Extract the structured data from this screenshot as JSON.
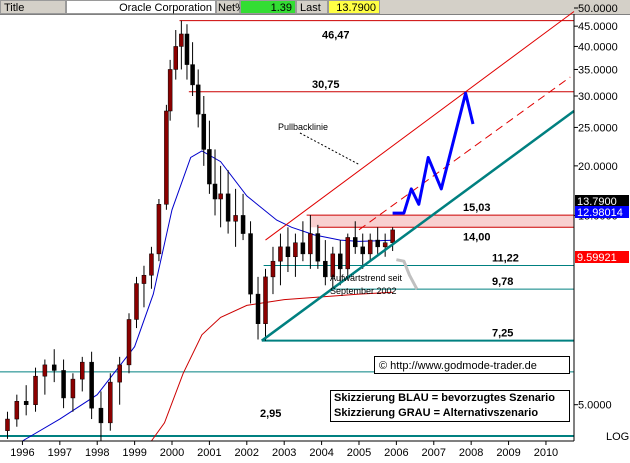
{
  "header": {
    "title_label": "Title",
    "symbol": "Oracle Corporation",
    "net_label": "Net%",
    "net_value": "1.39",
    "last_label": "Last",
    "last_value": "13.7900"
  },
  "colors": {
    "background": "#ffffff",
    "candles": "#8b0000",
    "ma_short": "#0000cc",
    "ma_long": "#cc0000",
    "trend_lines": "#008080",
    "channel_lines": "#e00000",
    "scenario_blue": "#0000ff",
    "scenario_gray": "#c0c0c0",
    "net_bg": "#33dd33",
    "last_bg": "#ffff44"
  },
  "chart_data": {
    "type": "candlestick",
    "yscale": "log",
    "ylim": [
      4.05,
      50
    ],
    "xlim": [
      1995.4,
      2010.75
    ],
    "y_ticks": [
      "50.0000",
      "45.0000",
      "40.0000",
      "35.0000",
      "30.0000",
      "25.0000",
      "20.0000",
      "15.0000",
      "5.0000"
    ],
    "y_tick_values": [
      50,
      45,
      40,
      35,
      30,
      25,
      20,
      15,
      5
    ],
    "x_ticks": [
      "1996",
      "1997",
      "1998",
      "1999",
      "2000",
      "2001",
      "2002",
      "2003",
      "2004",
      "2005",
      "2006",
      "2007",
      "2008",
      "2009",
      "2010"
    ],
    "x_tick_values": [
      1996,
      1997,
      1998,
      1999,
      2000,
      2001,
      2002,
      2003,
      2004,
      2005,
      2006,
      2007,
      2008,
      2009,
      2010
    ],
    "scale_label": "LOG",
    "price_markers": [
      {
        "label": "13.7900",
        "value": 13.79,
        "color": "#000000"
      },
      {
        "label": "12.98014",
        "value": 12.98,
        "color": "#0000ff"
      },
      {
        "label": "9.59921",
        "value": 9.6,
        "color": "#ff0000"
      }
    ],
    "levels": [
      {
        "label": "46,47",
        "value": 46.47,
        "color": "#cc0000"
      },
      {
        "label": "30,75",
        "value": 30.75,
        "color": "#cc0000"
      },
      {
        "label": "15,03",
        "value": 15.03,
        "color": "#cc0000"
      },
      {
        "label": "14,00",
        "value": 14.0,
        "color": "#cc0000"
      },
      {
        "label": "11,22",
        "value": 11.22,
        "color": "#008080"
      },
      {
        "label": "9,78",
        "value": 9.78,
        "color": "#008080"
      },
      {
        "label": "7,25",
        "value": 7.25,
        "color": "#008080"
      },
      {
        "label": "2,95",
        "value": 2.95,
        "color": "#008080"
      }
    ],
    "annotations": [
      "Pullbacklinie",
      "Aufwärtstrend seit",
      "September 2002"
    ],
    "candles_quarterly": [
      {
        "t": 1995.6,
        "o": 4.3,
        "h": 4.8,
        "l": 4.1,
        "c": 4.6
      },
      {
        "t": 1995.85,
        "o": 4.6,
        "h": 5.3,
        "l": 4.4,
        "c": 5.1
      },
      {
        "t": 1996.1,
        "o": 5.1,
        "h": 5.6,
        "l": 4.7,
        "c": 5.0
      },
      {
        "t": 1996.35,
        "o": 5.0,
        "h": 6.2,
        "l": 4.8,
        "c": 5.9
      },
      {
        "t": 1996.6,
        "o": 5.9,
        "h": 6.5,
        "l": 5.3,
        "c": 6.3
      },
      {
        "t": 1996.85,
        "o": 6.3,
        "h": 6.9,
        "l": 5.7,
        "c": 6.1
      },
      {
        "t": 1997.1,
        "o": 6.1,
        "h": 6.5,
        "l": 4.9,
        "c": 5.2
      },
      {
        "t": 1997.35,
        "o": 5.2,
        "h": 6.0,
        "l": 4.8,
        "c": 5.8
      },
      {
        "t": 1997.6,
        "o": 5.8,
        "h": 6.6,
        "l": 5.4,
        "c": 6.4
      },
      {
        "t": 1997.85,
        "o": 6.4,
        "h": 6.8,
        "l": 4.6,
        "c": 4.9
      },
      {
        "t": 1998.1,
        "o": 4.9,
        "h": 5.4,
        "l": 4.0,
        "c": 4.5
      },
      {
        "t": 1998.35,
        "o": 4.5,
        "h": 6.0,
        "l": 4.3,
        "c": 5.7
      },
      {
        "t": 1998.6,
        "o": 5.7,
        "h": 6.6,
        "l": 5.0,
        "c": 6.3
      },
      {
        "t": 1998.85,
        "o": 6.3,
        "h": 8.5,
        "l": 6.0,
        "c": 8.2
      },
      {
        "t": 1999.05,
        "o": 8.2,
        "h": 10.5,
        "l": 7.8,
        "c": 10.1
      },
      {
        "t": 1999.25,
        "o": 10.1,
        "h": 11.2,
        "l": 8.8,
        "c": 10.6
      },
      {
        "t": 1999.45,
        "o": 10.6,
        "h": 12.5,
        "l": 9.8,
        "c": 12.0
      },
      {
        "t": 1999.65,
        "o": 12.0,
        "h": 16.5,
        "l": 11.5,
        "c": 16.0
      },
      {
        "t": 1999.85,
        "o": 16.0,
        "h": 28.5,
        "l": 15.5,
        "c": 27.5
      },
      {
        "t": 1999.95,
        "o": 27.5,
        "h": 37.0,
        "l": 26.0,
        "c": 35.0
      },
      {
        "t": 2000.1,
        "o": 35.0,
        "h": 44.0,
        "l": 33.0,
        "c": 40.0
      },
      {
        "t": 2000.25,
        "o": 40.0,
        "h": 46.47,
        "l": 35.0,
        "c": 43.0
      },
      {
        "t": 2000.4,
        "o": 43.0,
        "h": 45.5,
        "l": 33.0,
        "c": 36.0
      },
      {
        "t": 2000.55,
        "o": 36.0,
        "h": 41.0,
        "l": 30.0,
        "c": 32.0
      },
      {
        "t": 2000.7,
        "o": 32.0,
        "h": 35.0,
        "l": 25.0,
        "c": 27.0
      },
      {
        "t": 2000.85,
        "o": 27.0,
        "h": 30.0,
        "l": 20.0,
        "c": 22.0
      },
      {
        "t": 2001.0,
        "o": 22.0,
        "h": 26.0,
        "l": 17.0,
        "c": 18.0
      },
      {
        "t": 2001.15,
        "o": 18.0,
        "h": 22.0,
        "l": 15.0,
        "c": 16.5
      },
      {
        "t": 2001.3,
        "o": 16.5,
        "h": 20.0,
        "l": 14.0,
        "c": 17.0
      },
      {
        "t": 2001.5,
        "o": 17.0,
        "h": 19.5,
        "l": 13.5,
        "c": 14.5
      },
      {
        "t": 2001.7,
        "o": 14.5,
        "h": 17.5,
        "l": 12.5,
        "c": 15.0
      },
      {
        "t": 2001.9,
        "o": 15.0,
        "h": 17.0,
        "l": 13.0,
        "c": 13.5
      },
      {
        "t": 2002.1,
        "o": 13.5,
        "h": 14.5,
        "l": 9.0,
        "c": 9.5
      },
      {
        "t": 2002.3,
        "o": 9.5,
        "h": 10.5,
        "l": 7.3,
        "c": 8.0
      },
      {
        "t": 2002.5,
        "o": 8.0,
        "h": 11.0,
        "l": 7.25,
        "c": 10.5
      },
      {
        "t": 2002.7,
        "o": 10.5,
        "h": 12.5,
        "l": 9.5,
        "c": 11.5
      },
      {
        "t": 2002.9,
        "o": 11.5,
        "h": 13.5,
        "l": 10.0,
        "c": 12.5
      },
      {
        "t": 2003.1,
        "o": 12.5,
        "h": 14.0,
        "l": 10.8,
        "c": 11.8
      },
      {
        "t": 2003.3,
        "o": 11.8,
        "h": 13.5,
        "l": 10.5,
        "c": 12.8
      },
      {
        "t": 2003.5,
        "o": 12.8,
        "h": 14.5,
        "l": 11.5,
        "c": 12.0
      },
      {
        "t": 2003.7,
        "o": 12.0,
        "h": 15.03,
        "l": 11.0,
        "c": 13.5
      },
      {
        "t": 2003.9,
        "o": 13.5,
        "h": 14.2,
        "l": 11.0,
        "c": 11.5
      },
      {
        "t": 2004.1,
        "o": 11.5,
        "h": 13.0,
        "l": 10.0,
        "c": 10.5
      },
      {
        "t": 2004.3,
        "o": 10.5,
        "h": 12.5,
        "l": 9.78,
        "c": 12.0
      },
      {
        "t": 2004.5,
        "o": 12.0,
        "h": 13.0,
        "l": 10.0,
        "c": 11.0
      },
      {
        "t": 2004.7,
        "o": 11.0,
        "h": 13.5,
        "l": 10.5,
        "c": 13.2
      },
      {
        "t": 2004.9,
        "o": 13.2,
        "h": 14.5,
        "l": 12.0,
        "c": 12.5
      },
      {
        "t": 2005.1,
        "o": 12.5,
        "h": 13.5,
        "l": 11.0,
        "c": 12.0
      },
      {
        "t": 2005.3,
        "o": 12.0,
        "h": 13.5,
        "l": 11.5,
        "c": 13.0
      },
      {
        "t": 2005.5,
        "o": 13.0,
        "h": 14.0,
        "l": 12.0,
        "c": 12.5
      },
      {
        "t": 2005.7,
        "o": 12.5,
        "h": 13.5,
        "l": 11.8,
        "c": 12.8
      },
      {
        "t": 2005.9,
        "o": 12.8,
        "h": 14.0,
        "l": 12.2,
        "c": 13.79
      }
    ],
    "series": [
      {
        "name": "",
        "color": "#0000cc",
        "points": [
          [
            1996.0,
            4.05
          ],
          [
            1997.0,
            4.6
          ],
          [
            1998.0,
            5.3
          ],
          [
            1999.0,
            7.0
          ],
          [
            1999.5,
            9.5
          ],
          [
            2000.0,
            15.5
          ],
          [
            2000.5,
            21.0
          ],
          [
            2000.8,
            21.8
          ],
          [
            2001.3,
            20.5
          ],
          [
            2002.0,
            16.8
          ],
          [
            2002.8,
            14.6
          ],
          [
            2003.2,
            14.0
          ],
          [
            2003.8,
            13.4
          ],
          [
            2004.5,
            13.0
          ],
          [
            2005.0,
            12.9
          ],
          [
            2005.9,
            12.98
          ]
        ]
      },
      {
        "name": "",
        "color": "#cc0000",
        "points": [
          [
            1999.45,
            4.05
          ],
          [
            1999.8,
            4.5
          ],
          [
            2000.3,
            6.0
          ],
          [
            2000.8,
            7.5
          ],
          [
            2001.3,
            8.3
          ],
          [
            2002.0,
            8.9
          ],
          [
            2003.0,
            9.2
          ],
          [
            2004.0,
            9.35
          ],
          [
            2005.0,
            9.5
          ],
          [
            2005.9,
            9.6
          ]
        ]
      }
    ],
    "trendlines": [
      {
        "name": "Aufwärtstrend",
        "color": "#008080",
        "points": [
          [
            2002.4,
            7.25
          ],
          [
            2010.75,
            27.5
          ]
        ]
      },
      {
        "name": "Pullbacklinie",
        "color": "#e00000",
        "points": [
          [
            2002.5,
            13.0
          ],
          [
            2010.75,
            49.0
          ]
        ]
      },
      {
        "name": "",
        "color": "#e00000",
        "dashed": true,
        "points": [
          [
            2005.0,
            13.8
          ],
          [
            2010.65,
            33.5
          ]
        ]
      }
    ],
    "scenario_blue": [
      [
        2005.9,
        15.2
      ],
      [
        2006.2,
        15.2
      ],
      [
        2006.4,
        17.5
      ],
      [
        2006.6,
        16.0
      ],
      [
        2006.85,
        21.0
      ],
      [
        2007.2,
        17.5
      ],
      [
        2007.85,
        30.5
      ],
      [
        2008.05,
        25.5
      ]
    ],
    "scenario_gray": [
      [
        2006.0,
        11.6
      ],
      [
        2006.2,
        11.5
      ],
      [
        2006.35,
        10.6
      ],
      [
        2006.55,
        9.78
      ]
    ]
  },
  "footer": {
    "copyright": "© http://www.godmode-trader.de",
    "note_blue": "Skizzierung BLAU = bevorzugtes Szenario",
    "note_gray": "Skizzierung GRAU = Alternativszenario"
  }
}
